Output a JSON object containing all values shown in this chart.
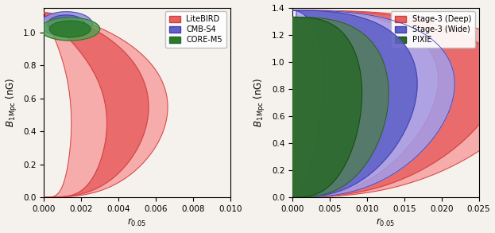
{
  "left_panel": {
    "xlim": [
      0.0,
      0.01
    ],
    "ylim": [
      0.0,
      1.15
    ],
    "xlabel": "$r_{0.05}$",
    "ylabel": "$B_{\\rm 1\\,Mpc}$ (nG)",
    "xticks": [
      0.0,
      0.002,
      0.004,
      0.006,
      0.008,
      0.01
    ],
    "yticks": [
      0.0,
      0.2,
      0.4,
      0.6,
      0.8,
      1.0
    ]
  },
  "right_panel": {
    "xlim": [
      0.0,
      0.025
    ],
    "ylim": [
      0.0,
      1.4
    ],
    "xlabel": "$r_{0.05}$",
    "ylabel": "$B_{\\rm 1\\,Mpc}$ (nG)",
    "xticks": [
      0.0,
      0.005,
      0.01,
      0.015,
      0.02,
      0.025
    ],
    "yticks": [
      0.0,
      0.2,
      0.4,
      0.6,
      0.8,
      1.0,
      1.2,
      1.4
    ]
  },
  "bg_color": "#f5f1ec",
  "fig_width": 6.23,
  "fig_height": 2.93
}
